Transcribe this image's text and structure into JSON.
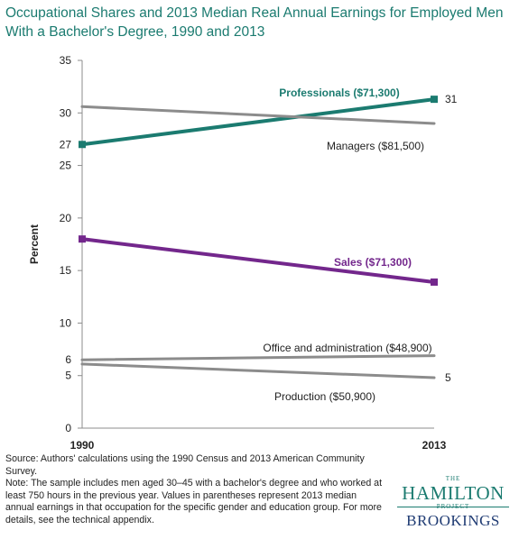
{
  "title": "Occupational Shares and 2013 Median Real Annual Earnings for Employed Men With a Bachelor's Degree, 1990 and 2013",
  "footer": {
    "source": "Source: Authors' calculations using the 1990 Census and 2013 American Community Survey.",
    "note": "Note: The sample includes men aged 30–45 with a bachelor's degree  and who worked at least 750 hours in the previous year. Values in parentheses represent 2013 median annual earnings in that occupation for the specific gender and education group. For more details, see the technical appendix."
  },
  "logo": {
    "the": "THE",
    "hamilton": "HAMILTON",
    "project": "PROJECT",
    "brookings": "BROOKINGS"
  },
  "chart_data": {
    "type": "line",
    "x": [
      "1990",
      "2013"
    ],
    "ylabel": "Percent",
    "ylim": [
      0,
      35
    ],
    "yticks": [
      0,
      5,
      10,
      15,
      20,
      25,
      30,
      35
    ],
    "grid": false,
    "series": [
      {
        "name": "Professionals ($71,300)",
        "values": [
          27,
          31.3
        ],
        "color": "#1b7b70",
        "bold": true,
        "marker": "square",
        "width": 4,
        "start_label": "27",
        "end_label": "31"
      },
      {
        "name": "Managers ($81,500)",
        "values": [
          30.6,
          29.0
        ],
        "color": "#8c8c8c",
        "bold": false,
        "marker": "none",
        "width": 3
      },
      {
        "name": "Sales ($71,300)",
        "values": [
          18.0,
          13.9
        ],
        "color": "#73278c",
        "bold": true,
        "marker": "square",
        "width": 4
      },
      {
        "name": "Office and administration ($48,900)",
        "values": [
          6.5,
          6.9
        ],
        "color": "#8c8c8c",
        "bold": false,
        "marker": "none",
        "width": 3,
        "start_label": "6"
      },
      {
        "name": "Production ($50,900)",
        "values": [
          6.1,
          4.8
        ],
        "color": "#8c8c8c",
        "bold": false,
        "marker": "none",
        "width": 3,
        "end_label": "5"
      }
    ]
  }
}
